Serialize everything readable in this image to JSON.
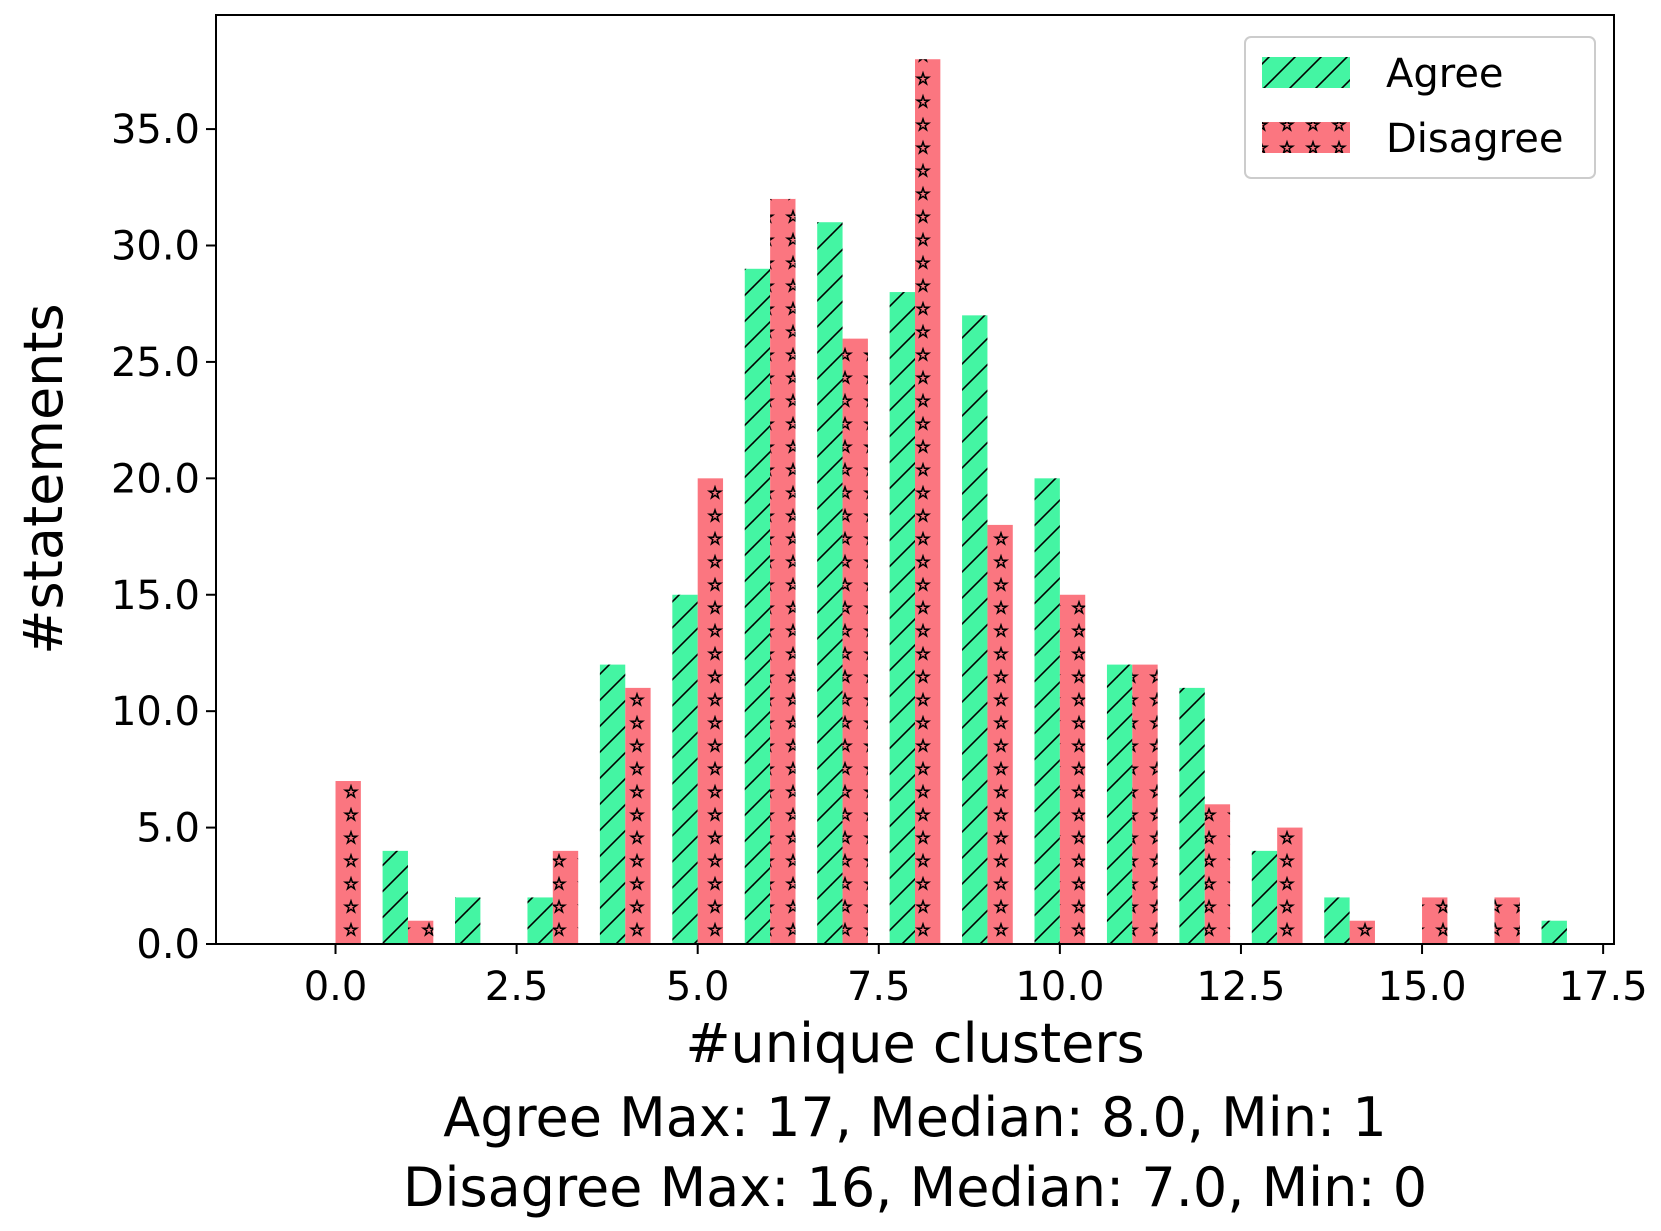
{
  "chart_data": {
    "type": "bar",
    "title": "",
    "xlabel": "#unique clusters",
    "ylabel": "#statements",
    "xlim": [
      -1.65,
      17.65
    ],
    "ylim": [
      0,
      39.9
    ],
    "xticks": [
      0.0,
      2.5,
      5.0,
      7.5,
      10.0,
      12.5,
      15.0,
      17.5
    ],
    "xtick_labels": [
      "0.0",
      "2.5",
      "5.0",
      "7.5",
      "10.0",
      "12.5",
      "15.0",
      "17.5"
    ],
    "yticks": [
      0,
      5,
      10,
      15,
      20,
      25,
      30,
      35
    ],
    "ytick_labels": [
      "0.0",
      "5.0",
      "10.0",
      "15.0",
      "20.0",
      "25.0",
      "30.0",
      "35.0"
    ],
    "x": [
      0,
      1,
      2,
      3,
      4,
      5,
      6,
      7,
      8,
      9,
      10,
      11,
      12,
      13,
      14,
      15,
      16,
      17
    ],
    "series": [
      {
        "name": "Agree",
        "color": "#44f5a3",
        "hatch": "diagonal",
        "values": [
          0,
          4,
          2,
          2,
          12,
          15,
          29,
          31,
          28,
          27,
          20,
          12,
          11,
          4,
          2,
          0,
          0,
          1
        ]
      },
      {
        "name": "Disagree",
        "color": "#fb7680",
        "hatch": "stars",
        "values": [
          7,
          1,
          0,
          4,
          11,
          20,
          32,
          26,
          38,
          18,
          15,
          12,
          6,
          5,
          1,
          2,
          2,
          0
        ]
      }
    ],
    "legend": {
      "position": "top-right",
      "entries": [
        "Agree",
        "Disagree"
      ]
    },
    "grid": false,
    "captions": [
      "Agree Max: 17, Median: 8.0, Min: 1",
      "Disagree Max: 16, Median: 7.0, Min: 0"
    ]
  }
}
